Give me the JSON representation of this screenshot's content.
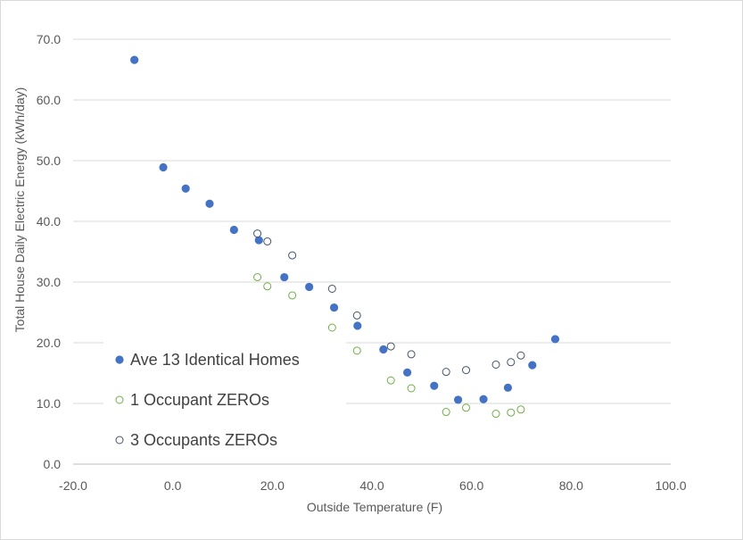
{
  "chart_data": {
    "type": "scatter",
    "xlabel": "Outside Temperature (F)",
    "ylabel": "Total House Daily Electric Energy (kWh/day)",
    "xlim": [
      -20,
      100
    ],
    "ylim": [
      0,
      70
    ],
    "x_ticks": [
      "-20.0",
      "0.0",
      "20.0",
      "40.0",
      "60.0",
      "80.0",
      "100.0"
    ],
    "y_ticks": [
      "0.0",
      "10.0",
      "20.0",
      "30.0",
      "40.0",
      "50.0",
      "60.0",
      "70.0"
    ],
    "grid": "horizontal",
    "legend_position": "lower-left",
    "series": [
      {
        "name": "Ave 13 Identical Homes",
        "marker": "filled-circle",
        "color": "#4472c4",
        "points": [
          [
            -7.7,
            66.6
          ],
          [
            -1.9,
            48.9
          ],
          [
            2.6,
            45.4
          ],
          [
            7.4,
            42.9
          ],
          [
            12.3,
            38.6
          ],
          [
            17.3,
            36.9
          ],
          [
            22.4,
            30.8
          ],
          [
            27.4,
            29.2
          ],
          [
            32.4,
            25.8
          ],
          [
            37.1,
            22.8
          ],
          [
            42.3,
            18.9
          ],
          [
            47.1,
            15.1
          ],
          [
            52.5,
            12.9
          ],
          [
            57.3,
            10.6
          ],
          [
            62.4,
            10.7
          ],
          [
            67.3,
            12.6
          ],
          [
            72.2,
            16.3
          ],
          [
            76.8,
            20.6
          ]
        ]
      },
      {
        "name": "1 Occupant ZEROs",
        "marker": "open-circle",
        "color": "#70ad47",
        "points": [
          [
            17.0,
            30.8
          ],
          [
            19.0,
            29.3
          ],
          [
            24.0,
            27.8
          ],
          [
            32.0,
            22.5
          ],
          [
            37.0,
            18.7
          ],
          [
            43.8,
            13.8
          ],
          [
            47.9,
            12.5
          ],
          [
            54.9,
            8.6
          ],
          [
            58.9,
            9.3
          ],
          [
            64.9,
            8.3
          ],
          [
            67.9,
            8.5
          ],
          [
            69.9,
            9.0
          ]
        ]
      },
      {
        "name": "3 Occupants ZEROs",
        "marker": "open-circle",
        "color": "#44546a",
        "points": [
          [
            17.0,
            38.0
          ],
          [
            19.0,
            36.7
          ],
          [
            24.0,
            34.4
          ],
          [
            32.0,
            28.9
          ],
          [
            37.0,
            24.5
          ],
          [
            43.8,
            19.4
          ],
          [
            47.9,
            18.1
          ],
          [
            54.9,
            15.2
          ],
          [
            58.9,
            15.5
          ],
          [
            64.9,
            16.4
          ],
          [
            67.9,
            16.8
          ],
          [
            69.9,
            17.9
          ]
        ]
      }
    ]
  }
}
